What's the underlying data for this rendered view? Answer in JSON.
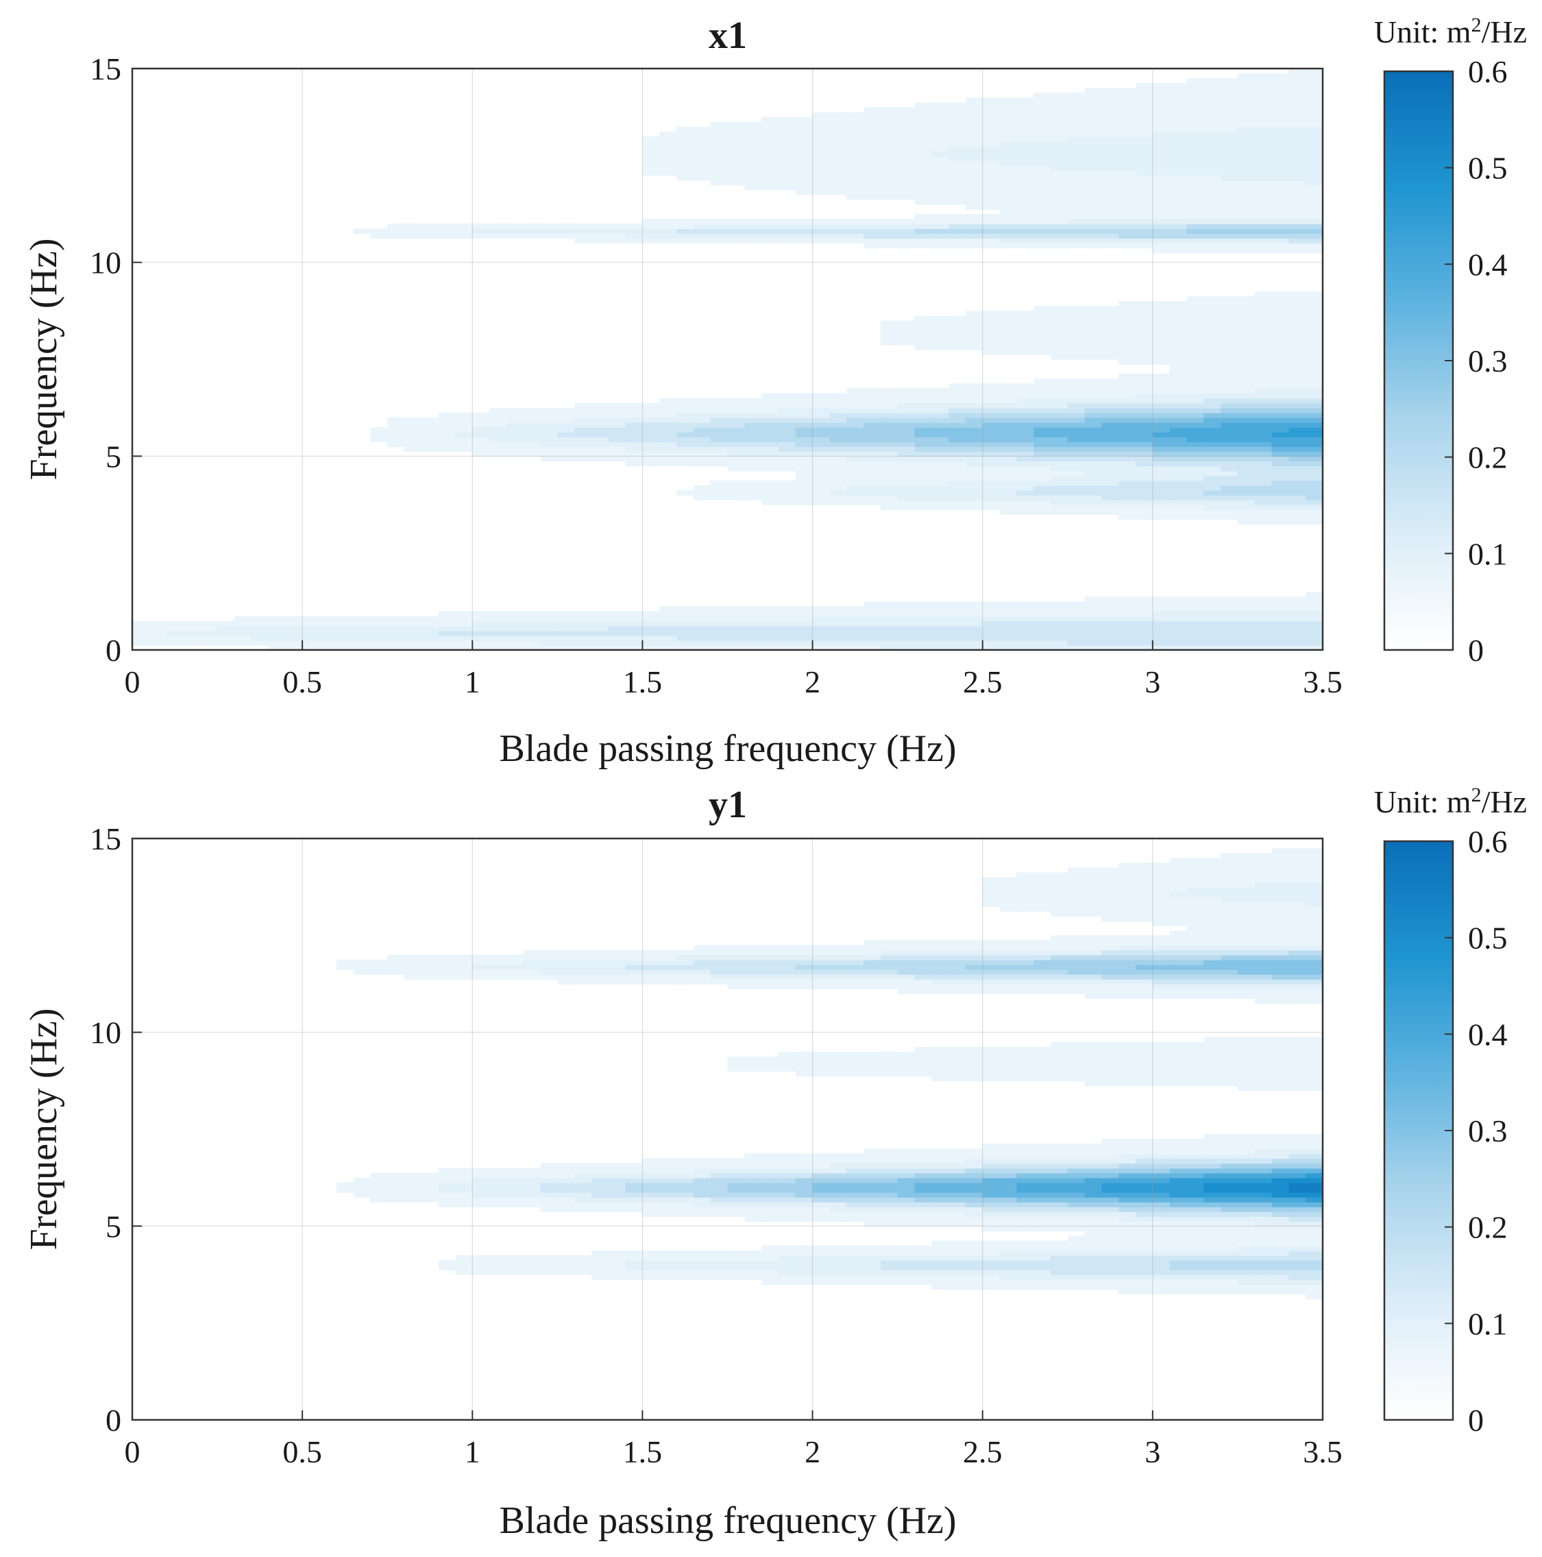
{
  "chart_data": [
    {
      "type": "contour",
      "title": "x1",
      "xlabel": "Blade passing frequency (Hz)",
      "ylabel": "Frequency (Hz)",
      "xlim": [
        0,
        3.5
      ],
      "ylim": [
        0,
        15
      ],
      "xticks": [
        0,
        0.5,
        1,
        1.5,
        2,
        2.5,
        3,
        3.5
      ],
      "xtick_labels": [
        "0",
        "0.5",
        "1",
        "1.5",
        "2",
        "2.5",
        "3",
        "3.5"
      ],
      "yticks": [
        0,
        5,
        10,
        15
      ],
      "ytick_labels": [
        "0",
        "5",
        "10",
        "15"
      ],
      "grid": true,
      "colorbar": {
        "unit_prefix": "Unit: m",
        "unit_exp": "2",
        "unit_suffix": "/Hz",
        "range": [
          0,
          0.6
        ],
        "ticks": [
          0,
          0.1,
          0.2,
          0.3,
          0.4,
          0.5,
          0.6
        ],
        "tick_labels": [
          "0",
          "0.1",
          "0.2",
          "0.3",
          "0.4",
          "0.5",
          "0.6"
        ],
        "colormap": [
          "#ffffff",
          "#dcedf8",
          "#a9d4ec",
          "#5eb3df",
          "#1f95d1",
          "#0a6fb8"
        ]
      },
      "bands": [
        {
          "center": 0.45,
          "width": 1.05,
          "peak": 0.15,
          "x_start": 0.0,
          "slope": 0.3
        },
        {
          "center": 5.6,
          "width": 1.6,
          "peak": 0.42,
          "x_start": 0.7,
          "slope": 0.9
        },
        {
          "center": 4.1,
          "width": 0.9,
          "peak": 0.17,
          "x_start": 1.6,
          "slope": 0.8
        },
        {
          "center": 10.8,
          "width": 0.55,
          "peak": 0.22,
          "x_start": 0.65,
          "slope": 0.7
        },
        {
          "center": 12.8,
          "width": 2.6,
          "peak": 0.07,
          "x_start": 1.5,
          "slope": 0.4
        },
        {
          "center": 8.2,
          "width": 1.4,
          "peak": 0.05,
          "x_start": 2.2,
          "slope": 0.3
        }
      ]
    },
    {
      "type": "contour",
      "title": "y1",
      "xlabel": "Blade passing frequency (Hz)",
      "ylabel": "Frequency (Hz)",
      "xlim": [
        0,
        3.5
      ],
      "ylim": [
        0,
        15
      ],
      "xticks": [
        0,
        0.5,
        1,
        1.5,
        2,
        2.5,
        3,
        3.5
      ],
      "xtick_labels": [
        "0",
        "0.5",
        "1",
        "1.5",
        "2",
        "2.5",
        "3",
        "3.5"
      ],
      "yticks": [
        0,
        5,
        10,
        15
      ],
      "ytick_labels": [
        "0",
        "5",
        "10",
        "15"
      ],
      "grid": true,
      "colorbar": {
        "unit_prefix": "Unit: m",
        "unit_exp": "2",
        "unit_suffix": "/Hz",
        "range": [
          0,
          0.6
        ],
        "ticks": [
          0,
          0.1,
          0.2,
          0.3,
          0.4,
          0.5,
          0.6
        ],
        "tick_labels": [
          "0",
          "0.1",
          "0.2",
          "0.3",
          "0.4",
          "0.5",
          "0.6"
        ],
        "colormap": [
          "#ffffff",
          "#dcedf8",
          "#a9d4ec",
          "#5eb3df",
          "#1f95d1",
          "#0a6fb8"
        ]
      },
      "bands": [
        {
          "center": 6.0,
          "width": 1.3,
          "peak": 0.52,
          "x_start": 0.6,
          "slope": 1.0
        },
        {
          "center": 4.0,
          "width": 0.85,
          "peak": 0.18,
          "x_start": 0.85,
          "slope": 0.8
        },
        {
          "center": 11.7,
          "width": 0.9,
          "peak": 0.3,
          "x_start": 0.58,
          "slope": 0.9
        },
        {
          "center": 13.6,
          "width": 1.5,
          "peak": 0.06,
          "x_start": 2.5,
          "slope": 0.3
        },
        {
          "center": 9.2,
          "width": 0.9,
          "peak": 0.05,
          "x_start": 1.75,
          "slope": 0.3
        }
      ]
    }
  ]
}
